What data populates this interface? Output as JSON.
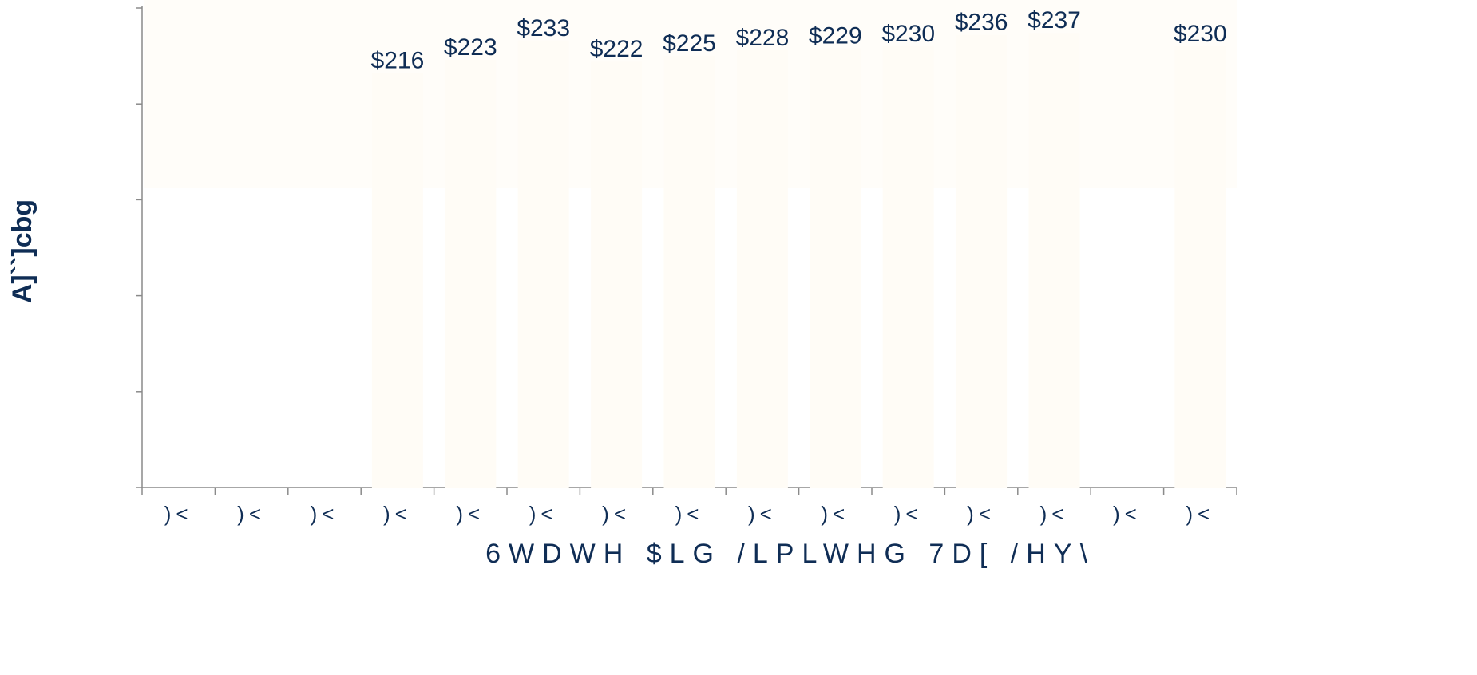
{
  "chart_data": {
    "type": "bar",
    "y_label": "A]``]cbg",
    "x_label": "6WDWH $LG /LPLWHG 7D[ /HY\\",
    "categories": [
      ")<",
      ")<",
      ")<",
      ")<",
      ")<",
      ")<",
      ")<",
      ")<",
      ")<",
      ")<",
      ")<",
      ")<",
      ")<",
      ")<",
      ")<"
    ],
    "values": [
      null,
      null,
      null,
      216,
      223,
      233,
      222,
      225,
      228,
      229,
      230,
      236,
      237,
      null,
      230
    ],
    "value_labels": [
      null,
      null,
      null,
      "$216",
      "$223",
      "$233",
      "$222",
      "$225",
      "$228",
      "$229",
      "$230",
      "$236",
      "$237",
      null,
      "$230"
    ],
    "color": "#fffcf6",
    "ylim": [
      0,
      250
    ],
    "yticks": [
      0,
      50,
      100,
      150,
      200,
      250
    ]
  }
}
